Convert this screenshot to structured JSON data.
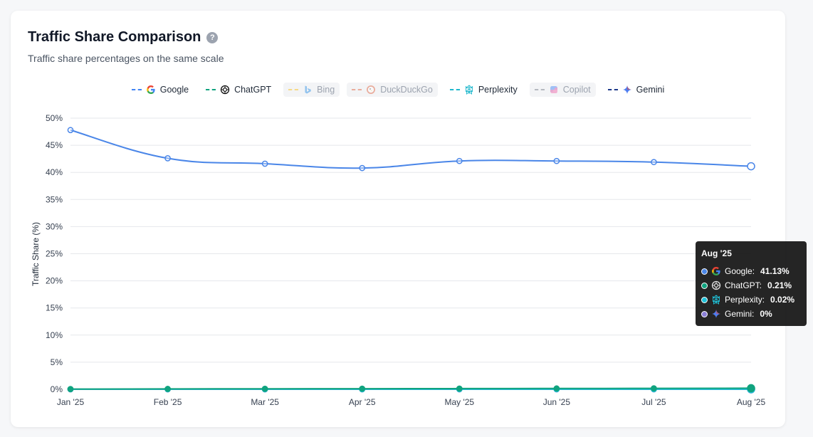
{
  "header": {
    "title": "Traffic Share Comparison",
    "help_symbol": "?",
    "subtitle": "Traffic share percentages on the same scale"
  },
  "legend": [
    {
      "name": "Google",
      "color": "#4285f4",
      "icon": "google-icon",
      "active": true
    },
    {
      "name": "ChatGPT",
      "color": "#10a37f",
      "icon": "chatgpt-icon",
      "active": true
    },
    {
      "name": "Bing",
      "color": "#fbbc05",
      "icon": "bing-icon",
      "active": false
    },
    {
      "name": "DuckDuckGo",
      "color": "#de5833",
      "icon": "duckduckgo-icon",
      "active": false
    },
    {
      "name": "Perplexity",
      "color": "#20b8cd",
      "icon": "perplexity-icon",
      "active": true
    },
    {
      "name": "Copilot",
      "color": "#6b7280",
      "icon": "copilot-icon",
      "active": false
    },
    {
      "name": "Gemini",
      "color": "#1e3a8a",
      "icon": "gemini-icon",
      "active": true
    }
  ],
  "chart_data": {
    "type": "line",
    "title": "Traffic Share Comparison",
    "subtitle": "Traffic share percentages on the same scale",
    "xlabel": "",
    "ylabel": "Traffic Share (%)",
    "x": [
      "Jan '25",
      "Feb '25",
      "Mar '25",
      "Apr '25",
      "May '25",
      "Jun '25",
      "Jul '25",
      "Aug '25"
    ],
    "y_ticks": [
      "0%",
      "5%",
      "10%",
      "15%",
      "20%",
      "25%",
      "30%",
      "35%",
      "40%",
      "45%",
      "50%"
    ],
    "ylim": [
      0,
      50
    ],
    "grid": true,
    "legend_position": "top-center",
    "series": [
      {
        "name": "Google",
        "color": "#4a86e8",
        "values": [
          47.8,
          42.6,
          41.6,
          40.8,
          42.1,
          42.1,
          41.9,
          41.13
        ]
      },
      {
        "name": "ChatGPT",
        "color": "#10a37f",
        "values": [
          0.05,
          0.08,
          0.1,
          0.12,
          0.14,
          0.16,
          0.18,
          0.21
        ]
      },
      {
        "name": "Perplexity",
        "color": "#20c1d8",
        "values": [
          0.01,
          0.01,
          0.01,
          0.01,
          0.02,
          0.02,
          0.02,
          0.02
        ]
      },
      {
        "name": "Gemini",
        "color": "#8b7fd6",
        "values": [
          0,
          0,
          0,
          0,
          0,
          0,
          0,
          0
        ]
      }
    ],
    "hidden_series": [
      "Bing",
      "DuckDuckGo",
      "Copilot"
    ]
  },
  "tooltip": {
    "title": "Aug '25",
    "rows": [
      {
        "name": "Google:",
        "value": "41.13%",
        "color": "#4a86e8",
        "icon": "google-icon"
      },
      {
        "name": "ChatGPT:",
        "value": "0.21%",
        "color": "#10a37f",
        "icon": "chatgpt-icon"
      },
      {
        "name": "Perplexity:",
        "value": "0.02%",
        "color": "#20c1d8",
        "icon": "perplexity-icon"
      },
      {
        "name": "Gemini:",
        "value": "0%",
        "color": "#8b7fd6",
        "icon": "gemini-icon"
      }
    ]
  }
}
